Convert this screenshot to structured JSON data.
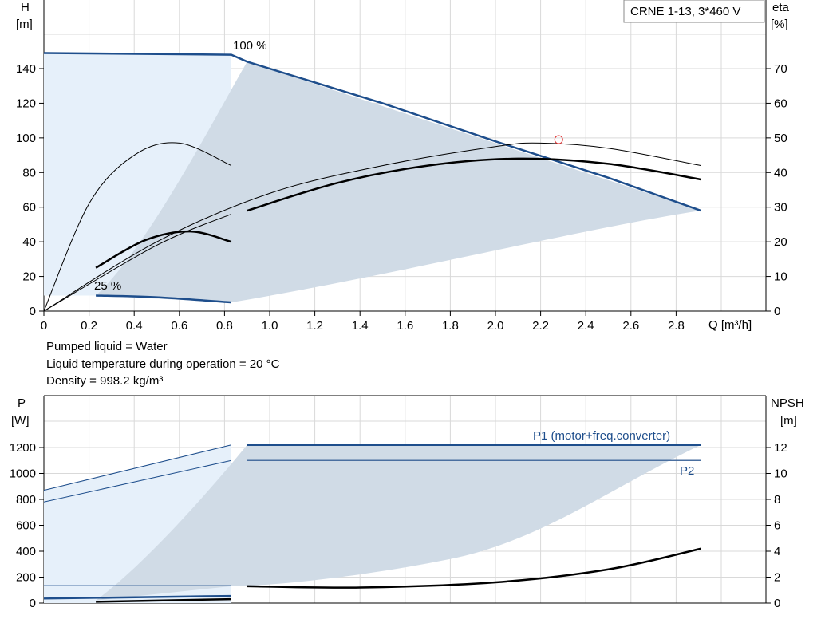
{
  "chart_data": [
    {
      "type": "line",
      "title": "CRNE 1-13, 3*460 V",
      "xlabel": "Q [m³/h]",
      "ylabel_left": [
        "H",
        "[m]"
      ],
      "ylabel_right": [
        "eta",
        "[%]"
      ],
      "xlim": [
        0,
        3.2
      ],
      "ylim_left": [
        0,
        160
      ],
      "ylim_right": [
        0,
        80
      ],
      "x_ticks": [
        0,
        0.2,
        0.4,
        0.6,
        0.8,
        1.0,
        1.2,
        1.4,
        1.6,
        1.8,
        2.0,
        2.2,
        2.4,
        2.6,
        2.8
      ],
      "x_tick_labels": [
        "0",
        "0.2",
        "0.4",
        "0.6",
        "0.8",
        "1.0",
        "1.2",
        "1.4",
        "1.6",
        "1.8",
        "2.0",
        "2.2",
        "2.4",
        "2.6",
        "2.8"
      ],
      "y_ticks_left": [
        0,
        20,
        40,
        60,
        80,
        100,
        120,
        140
      ],
      "y_ticks_right": [
        0,
        10,
        20,
        30,
        40,
        50,
        60,
        70
      ],
      "grid": true,
      "annotations": [
        "100 %",
        "25 %"
      ],
      "series": [
        {
          "role": "head-100",
          "color": "#1e4e8c",
          "x": [
            0,
            0.83,
            0.9,
            1.5,
            2.0,
            2.5,
            2.91
          ],
          "y": [
            149,
            148,
            144,
            120,
            98,
            77,
            58
          ]
        },
        {
          "role": "head-25",
          "color": "#1e4e8c",
          "x": [
            0.23,
            0.5,
            0.83
          ],
          "y": [
            9,
            8,
            5
          ]
        },
        {
          "role": "eta-thin-full",
          "color": "#000000",
          "axis": "right",
          "x": [
            0,
            0.5,
            1.0,
            1.5,
            2.0,
            2.2,
            2.5,
            2.91
          ],
          "y": [
            0,
            20,
            34,
            42,
            47.5,
            48.5,
            47,
            42
          ]
        },
        {
          "role": "eta-thin-full-2",
          "color": "#000000",
          "axis": "right",
          "x": [
            0,
            0.5,
            0.83
          ],
          "y": [
            0,
            19,
            28
          ]
        },
        {
          "role": "eta-thin-25",
          "color": "#000000",
          "axis": "right",
          "x": [
            0,
            0.2,
            0.4,
            0.6,
            0.83
          ],
          "y": [
            0,
            31,
            45,
            48.5,
            42
          ]
        },
        {
          "role": "eta-thick",
          "color": "#000000",
          "axis": "right",
          "x": [
            0.9,
            1.3,
            1.7,
            2.1,
            2.5,
            2.91
          ],
          "y": [
            29,
            37,
            42,
            44,
            42.5,
            38
          ]
        },
        {
          "role": "eta-thick-25",
          "color": "#000000",
          "axis": "right",
          "x": [
            0.23,
            0.45,
            0.65,
            0.83
          ],
          "y": [
            12.5,
            20.5,
            23,
            20
          ]
        }
      ],
      "marker": {
        "x": 2.28,
        "y": 49.5,
        "axis": "right",
        "color": "#e03030"
      }
    },
    {
      "type": "line",
      "ylabel_left": [
        "P",
        "[W]"
      ],
      "ylabel_right": [
        "NPSH",
        "[m]"
      ],
      "xlim": [
        0,
        3.2
      ],
      "ylim_left": [
        0,
        1400
      ],
      "ylim_right": [
        0,
        14
      ],
      "y_ticks_left": [
        0,
        200,
        400,
        600,
        800,
        1000,
        1200
      ],
      "y_ticks_right": [
        0,
        2,
        4,
        6,
        8,
        10,
        12
      ],
      "grid": true,
      "annotations": [
        "P1 (motor+freq.converter)",
        "P2"
      ],
      "series": [
        {
          "name": "P1 (motor+freq.converter)",
          "color": "#1e4e8c",
          "x": [
            0.9,
            2.91
          ],
          "y": [
            1220,
            1220
          ]
        },
        {
          "name": "P2",
          "color": "#4a6fa0",
          "x": [
            0.9,
            2.91
          ],
          "y": [
            1100,
            1100
          ]
        },
        {
          "role": "p1-thin",
          "color": "#1e4e8c",
          "x": [
            0,
            0.83
          ],
          "y": [
            870,
            1220
          ]
        },
        {
          "role": "p2-thin",
          "color": "#1e4e8c",
          "x": [
            0,
            0.83
          ],
          "y": [
            780,
            1100
          ]
        },
        {
          "role": "npsh",
          "color": "#000000",
          "axis": "right",
          "x": [
            0.9,
            1.4,
            2.0,
            2.5,
            2.91
          ],
          "y": [
            1.3,
            1.2,
            1.6,
            2.6,
            4.2
          ]
        },
        {
          "role": "p-25-a",
          "color": "#1e4e8c",
          "x": [
            0,
            0.83
          ],
          "y": [
            35,
            55
          ]
        },
        {
          "role": "p-25-b",
          "color": "#000000",
          "x": [
            0.23,
            0.83
          ],
          "y": [
            10,
            30
          ]
        }
      ]
    }
  ],
  "notes": {
    "liquid": "Pumped liquid = Water",
    "temperature": "Liquid temperature during operation = 20 °C",
    "density": "Density = 998.2 kg/m³"
  }
}
